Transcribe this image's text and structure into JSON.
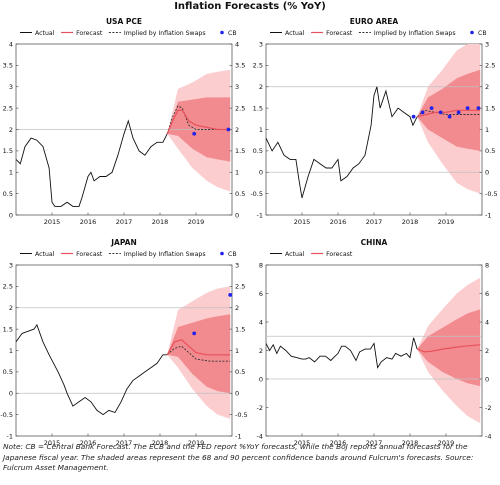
{
  "title": "Inflation Forecasts (% YoY)",
  "footnote": "Note: CB = Central Bank Forecast. The ECB and the FED report %YoY forecasts, while the BoJ reports annual forecasts for the Japanese fiscal year. The shaded areas represent the 68 and 90 percent confidence bands around Fulcrum's forecasts. Source: Fulcrum Asset Management.",
  "colors": {
    "actual": "#111111",
    "forecast": "#e8505b",
    "band68": "#f28b8f",
    "band90": "#fbcdcf",
    "cb": "#2222ee",
    "refline": "#c0c0c0"
  },
  "legend_labels": {
    "actual": "Actual",
    "forecast": "Forecast",
    "swaps": "Implied by Inflation Swaps",
    "cb": "CB"
  },
  "chart_data": [
    {
      "id": "usa",
      "type": "line",
      "title": "USA PCE",
      "legend": [
        "actual",
        "forecast",
        "swaps",
        "cb"
      ],
      "xlim": [
        2014.0,
        2020.0
      ],
      "ylim": [
        0,
        4
      ],
      "yticks": [
        0,
        0.5,
        1,
        1.5,
        2,
        2.5,
        3,
        3.5,
        4
      ],
      "yticklabels": [
        "0",
        "0.5",
        "1",
        "1.5",
        "2",
        "2.5",
        "3",
        "3.5",
        "4"
      ],
      "xticks": [
        2015,
        2016,
        2017,
        2018,
        2019
      ],
      "xticklabels": [
        "2015",
        "2016",
        "2017",
        "2018",
        "2019"
      ],
      "reflines": [
        2
      ],
      "actual": [
        [
          2014.0,
          1.3
        ],
        [
          2014.12,
          1.2
        ],
        [
          2014.25,
          1.6
        ],
        [
          2014.42,
          1.8
        ],
        [
          2014.58,
          1.75
        ],
        [
          2014.75,
          1.6
        ],
        [
          2014.92,
          1.1
        ],
        [
          2015.0,
          0.3
        ],
        [
          2015.08,
          0.2
        ],
        [
          2015.25,
          0.2
        ],
        [
          2015.42,
          0.3
        ],
        [
          2015.58,
          0.2
        ],
        [
          2015.75,
          0.2
        ],
        [
          2015.83,
          0.4
        ],
        [
          2016.0,
          0.9
        ],
        [
          2016.08,
          1.0
        ],
        [
          2016.17,
          0.8
        ],
        [
          2016.33,
          0.9
        ],
        [
          2016.5,
          0.9
        ],
        [
          2016.67,
          1.0
        ],
        [
          2016.83,
          1.4
        ],
        [
          2017.0,
          1.9
        ],
        [
          2017.12,
          2.2
        ],
        [
          2017.25,
          1.8
        ],
        [
          2017.42,
          1.5
        ],
        [
          2017.58,
          1.4
        ],
        [
          2017.75,
          1.6
        ],
        [
          2017.92,
          1.7
        ],
        [
          2018.08,
          1.7
        ],
        [
          2018.2,
          1.9
        ]
      ],
      "forecast": [
        [
          2018.2,
          1.9
        ],
        [
          2018.35,
          2.2
        ],
        [
          2018.5,
          2.45
        ],
        [
          2018.62,
          2.45
        ],
        [
          2018.8,
          2.2
        ],
        [
          2019.0,
          2.1
        ],
        [
          2019.3,
          2.05
        ],
        [
          2019.6,
          2.0
        ],
        [
          2019.95,
          2.0
        ]
      ],
      "swaps": [
        [
          2018.2,
          1.9
        ],
        [
          2018.35,
          2.3
        ],
        [
          2018.5,
          2.55
        ],
        [
          2018.62,
          2.5
        ],
        [
          2018.8,
          2.1
        ],
        [
          2019.0,
          2.0
        ],
        [
          2019.5,
          2.0
        ],
        [
          2019.95,
          2.0
        ]
      ],
      "cb": [
        [
          2018.95,
          1.9
        ],
        [
          2019.9,
          2.0
        ]
      ],
      "band": {
        "x": [
          2018.2,
          2018.5,
          2018.9,
          2019.3,
          2019.6,
          2019.95
        ],
        "lo90": [
          1.9,
          1.55,
          1.1,
          0.8,
          0.65,
          0.55
        ],
        "lo68": [
          1.9,
          1.85,
          1.55,
          1.35,
          1.3,
          1.25
        ],
        "hi68": [
          1.9,
          2.65,
          2.7,
          2.75,
          2.75,
          2.75
        ],
        "hi90": [
          1.9,
          2.95,
          3.1,
          3.3,
          3.35,
          3.4
        ]
      }
    },
    {
      "id": "euro",
      "type": "line",
      "title": "EURO AREA",
      "legend": [
        "actual",
        "forecast",
        "swaps",
        "cb"
      ],
      "xlim": [
        2014.0,
        2020.0
      ],
      "ylim": [
        -1,
        3
      ],
      "yticks": [
        -1,
        -0.5,
        0,
        0.5,
        1,
        1.5,
        2,
        2.5,
        3
      ],
      "yticklabels": [
        "-1",
        "-0.5",
        "0",
        "0.5",
        "1",
        "1.5",
        "2",
        "2.5",
        "3"
      ],
      "xticks": [
        2015,
        2016,
        2017,
        2018,
        2019
      ],
      "xticklabels": [
        "2015",
        "2016",
        "2017",
        "2018",
        "2019"
      ],
      "reflines": [
        0,
        2
      ],
      "actual": [
        [
          2014.0,
          0.8
        ],
        [
          2014.17,
          0.5
        ],
        [
          2014.33,
          0.7
        ],
        [
          2014.5,
          0.4
        ],
        [
          2014.67,
          0.3
        ],
        [
          2014.83,
          0.3
        ],
        [
          2014.92,
          -0.2
        ],
        [
          2015.0,
          -0.6
        ],
        [
          2015.17,
          -0.1
        ],
        [
          2015.33,
          0.3
        ],
        [
          2015.5,
          0.2
        ],
        [
          2015.67,
          0.1
        ],
        [
          2015.83,
          0.1
        ],
        [
          2016.0,
          0.3
        ],
        [
          2016.08,
          -0.2
        ],
        [
          2016.25,
          -0.1
        ],
        [
          2016.42,
          0.1
        ],
        [
          2016.58,
          0.2
        ],
        [
          2016.75,
          0.4
        ],
        [
          2016.92,
          1.1
        ],
        [
          2017.0,
          1.8
        ],
        [
          2017.08,
          2.0
        ],
        [
          2017.17,
          1.5
        ],
        [
          2017.33,
          1.9
        ],
        [
          2017.5,
          1.3
        ],
        [
          2017.67,
          1.5
        ],
        [
          2017.83,
          1.4
        ],
        [
          2018.0,
          1.3
        ],
        [
          2018.08,
          1.1
        ],
        [
          2018.2,
          1.3
        ]
      ],
      "forecast": [
        [
          2018.2,
          1.3
        ],
        [
          2018.45,
          1.35
        ],
        [
          2018.7,
          1.4
        ],
        [
          2019.0,
          1.4
        ],
        [
          2019.3,
          1.45
        ],
        [
          2019.6,
          1.45
        ],
        [
          2019.95,
          1.45
        ]
      ],
      "swaps": [
        [
          2018.2,
          1.3
        ],
        [
          2018.4,
          1.45
        ],
        [
          2018.7,
          1.4
        ],
        [
          2019.0,
          1.35
        ],
        [
          2019.5,
          1.35
        ],
        [
          2019.95,
          1.35
        ]
      ],
      "cb": [
        [
          2018.1,
          1.3
        ],
        [
          2018.35,
          1.4
        ],
        [
          2018.6,
          1.5
        ],
        [
          2018.85,
          1.4
        ],
        [
          2019.1,
          1.3
        ],
        [
          2019.35,
          1.4
        ],
        [
          2019.6,
          1.5
        ],
        [
          2019.9,
          1.5
        ]
      ],
      "band": {
        "x": [
          2018.2,
          2018.5,
          2018.9,
          2019.3,
          2019.6,
          2019.95
        ],
        "lo90": [
          1.3,
          0.7,
          0.2,
          -0.25,
          -0.4,
          -0.5
        ],
        "lo68": [
          1.3,
          1.0,
          0.8,
          0.6,
          0.55,
          0.5
        ],
        "hi68": [
          1.3,
          1.75,
          1.95,
          2.2,
          2.3,
          2.4
        ],
        "hi90": [
          1.3,
          2.0,
          2.4,
          2.85,
          3.0,
          3.1
        ]
      }
    },
    {
      "id": "japan",
      "type": "line",
      "title": "JAPAN",
      "legend": [
        "actual",
        "forecast",
        "swaps",
        "cb"
      ],
      "xlim": [
        2014.0,
        2020.0
      ],
      "ylim": [
        -1,
        3
      ],
      "yticks": [
        -1,
        -0.5,
        0,
        0.5,
        1,
        1.5,
        2,
        2.5,
        3
      ],
      "yticklabels": [
        "-1",
        "-0.5",
        "0",
        "0.5",
        "1",
        "1.5",
        "2",
        "2.5",
        "3"
      ],
      "xticks": [
        2015,
        2016,
        2017,
        2018,
        2019
      ],
      "xticklabels": [
        "2015",
        "2016",
        "2017",
        "2018",
        "2019"
      ],
      "reflines": [
        0,
        2
      ],
      "actual": [
        [
          2014.0,
          1.2
        ],
        [
          2014.17,
          1.4
        ],
        [
          2014.33,
          1.45
        ],
        [
          2014.5,
          1.5
        ],
        [
          2014.58,
          1.6
        ],
        [
          2014.75,
          1.2
        ],
        [
          2014.92,
          0.9
        ],
        [
          2015.17,
          0.5
        ],
        [
          2015.33,
          0.2
        ],
        [
          2015.42,
          0.0
        ],
        [
          2015.58,
          -0.3
        ],
        [
          2015.75,
          -0.2
        ],
        [
          2015.92,
          -0.1
        ],
        [
          2016.08,
          -0.2
        ],
        [
          2016.25,
          -0.4
        ],
        [
          2016.42,
          -0.5
        ],
        [
          2016.58,
          -0.4
        ],
        [
          2016.75,
          -0.45
        ],
        [
          2016.92,
          -0.2
        ],
        [
          2017.08,
          0.1
        ],
        [
          2017.25,
          0.3
        ],
        [
          2017.42,
          0.4
        ],
        [
          2017.58,
          0.5
        ],
        [
          2017.75,
          0.6
        ],
        [
          2017.92,
          0.7
        ],
        [
          2018.08,
          0.9
        ],
        [
          2018.2,
          0.9
        ]
      ],
      "forecast": [
        [
          2018.2,
          0.9
        ],
        [
          2018.4,
          1.2
        ],
        [
          2018.6,
          1.25
        ],
        [
          2018.8,
          1.1
        ],
        [
          2019.0,
          0.95
        ],
        [
          2019.3,
          0.9
        ],
        [
          2019.6,
          0.9
        ],
        [
          2019.95,
          0.9
        ]
      ],
      "swaps": [
        [
          2018.2,
          0.9
        ],
        [
          2018.4,
          1.05
        ],
        [
          2018.6,
          1.1
        ],
        [
          2018.8,
          0.95
        ],
        [
          2019.0,
          0.8
        ],
        [
          2019.4,
          0.75
        ],
        [
          2019.95,
          0.75
        ]
      ],
      "cb": [
        [
          2018.95,
          1.4
        ],
        [
          2019.95,
          2.3
        ]
      ],
      "band": {
        "x": [
          2018.2,
          2018.5,
          2018.9,
          2019.3,
          2019.6,
          2019.95
        ],
        "lo90": [
          0.9,
          0.6,
          0.1,
          -0.3,
          -0.5,
          -0.6
        ],
        "lo68": [
          0.9,
          0.85,
          0.45,
          0.15,
          0.05,
          0.0
        ],
        "hi68": [
          0.9,
          1.55,
          1.65,
          1.75,
          1.8,
          1.85
        ],
        "hi90": [
          0.9,
          1.95,
          2.15,
          2.35,
          2.45,
          2.5
        ]
      }
    },
    {
      "id": "china",
      "type": "line",
      "title": "CHINA",
      "legend": [
        "actual",
        "forecast"
      ],
      "xlim": [
        2014.0,
        2020.0
      ],
      "ylim": [
        -4,
        8
      ],
      "yticks": [
        -4,
        -2,
        0,
        2,
        4,
        6,
        8
      ],
      "yticklabels": [
        "-4",
        "-2",
        "0",
        "2",
        "4",
        "6",
        "8"
      ],
      "xticks": [
        2015,
        2016,
        2017,
        2018,
        2019
      ],
      "xticklabels": [
        "2015",
        "2016",
        "2017",
        "2018",
        "2019"
      ],
      "reflines": [
        0,
        3
      ],
      "actual": [
        [
          2014.0,
          2.5
        ],
        [
          2014.1,
          2.0
        ],
        [
          2014.2,
          2.4
        ],
        [
          2014.3,
          1.8
        ],
        [
          2014.4,
          2.3
        ],
        [
          2014.55,
          2.0
        ],
        [
          2014.7,
          1.6
        ],
        [
          2014.85,
          1.5
        ],
        [
          2015.0,
          1.4
        ],
        [
          2015.1,
          1.4
        ],
        [
          2015.2,
          1.5
        ],
        [
          2015.35,
          1.2
        ],
        [
          2015.5,
          1.6
        ],
        [
          2015.65,
          1.6
        ],
        [
          2015.8,
          1.3
        ],
        [
          2015.92,
          1.6
        ],
        [
          2016.0,
          1.8
        ],
        [
          2016.1,
          2.3
        ],
        [
          2016.2,
          2.3
        ],
        [
          2016.35,
          2.0
        ],
        [
          2016.5,
          1.3
        ],
        [
          2016.6,
          1.9
        ],
        [
          2016.75,
          2.1
        ],
        [
          2016.9,
          2.1
        ],
        [
          2017.0,
          2.5
        ],
        [
          2017.1,
          0.8
        ],
        [
          2017.2,
          1.2
        ],
        [
          2017.35,
          1.5
        ],
        [
          2017.5,
          1.4
        ],
        [
          2017.6,
          1.8
        ],
        [
          2017.75,
          1.6
        ],
        [
          2017.9,
          1.8
        ],
        [
          2018.0,
          1.5
        ],
        [
          2018.1,
          2.9
        ],
        [
          2018.2,
          2.1
        ]
      ],
      "forecast": [
        [
          2018.2,
          2.1
        ],
        [
          2018.4,
          1.9
        ],
        [
          2018.6,
          1.95
        ],
        [
          2018.9,
          2.1
        ],
        [
          2019.2,
          2.2
        ],
        [
          2019.5,
          2.3
        ],
        [
          2019.95,
          2.4
        ]
      ],
      "swaps": [],
      "cb": [],
      "band": {
        "x": [
          2018.2,
          2018.5,
          2018.9,
          2019.3,
          2019.6,
          2019.95
        ],
        "lo90": [
          2.1,
          0.5,
          -0.8,
          -1.9,
          -2.6,
          -3.1
        ],
        "lo68": [
          2.1,
          1.2,
          0.5,
          0.0,
          -0.3,
          -0.5
        ],
        "hi68": [
          2.1,
          3.0,
          3.6,
          4.2,
          4.6,
          4.9
        ],
        "hi90": [
          2.1,
          3.7,
          4.9,
          6.0,
          6.6,
          7.1
        ]
      }
    }
  ]
}
